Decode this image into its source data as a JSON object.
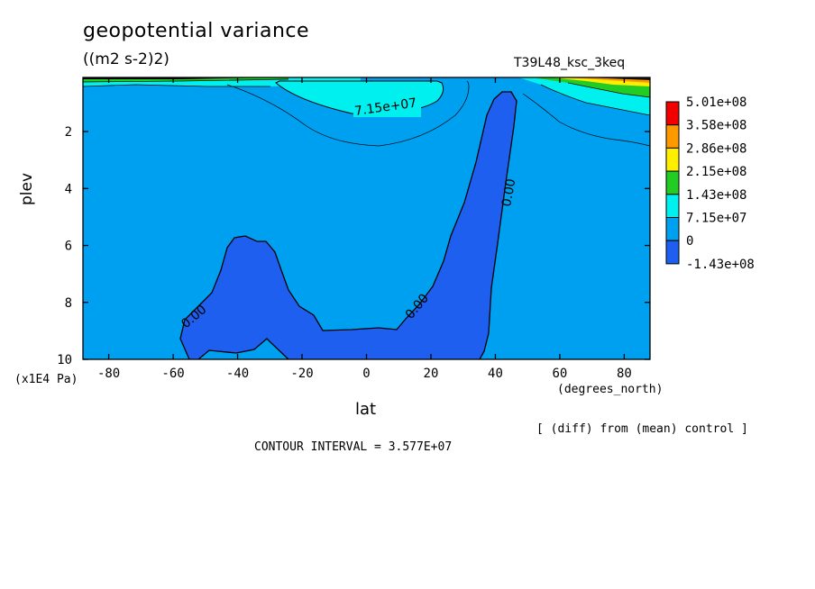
{
  "chart_data": {
    "type": "contour",
    "title": "geopotential variance",
    "units": "((m2 s-2)2)",
    "run_id": "T39L48_ksc_3keq",
    "xlabel": "lat",
    "x_unit": "(degrees_north)",
    "ylabel": "plev",
    "y_unit": "(x1E4 Pa)",
    "xlim": [
      -88,
      88
    ],
    "ylim": [
      10,
      0.1
    ],
    "x_ticks": [
      "-80",
      "-60",
      "-40",
      "-20",
      "0",
      "20",
      "40",
      "60",
      "80"
    ],
    "y_ticks": [
      "2",
      "4",
      "6",
      "8",
      "10"
    ],
    "legend": {
      "position": "right",
      "levels": [
        {
          "label": "5.01e+08",
          "color": "#f20000"
        },
        {
          "label": "3.58e+08",
          "color": "#ff9900"
        },
        {
          "label": "2.86e+08",
          "color": "#ffee00"
        },
        {
          "label": "2.15e+08",
          "color": "#22cc22"
        },
        {
          "label": "1.43e+08",
          "color": "#00f0f0"
        },
        {
          "label": "7.15e+07",
          "color": "#00a0f0"
        },
        {
          "label": "0",
          "color": "#1f5ff0"
        },
        {
          "label": "-1.43e+08",
          "color": null
        }
      ]
    },
    "contour_labels": [
      "7.15e+07",
      "0.00",
      "0.00",
      "0.00"
    ],
    "contour_interval": "CONTOUR INTERVAL = 3.577E+07",
    "comparison_note": "[ (diff) from (mean) control ]"
  }
}
